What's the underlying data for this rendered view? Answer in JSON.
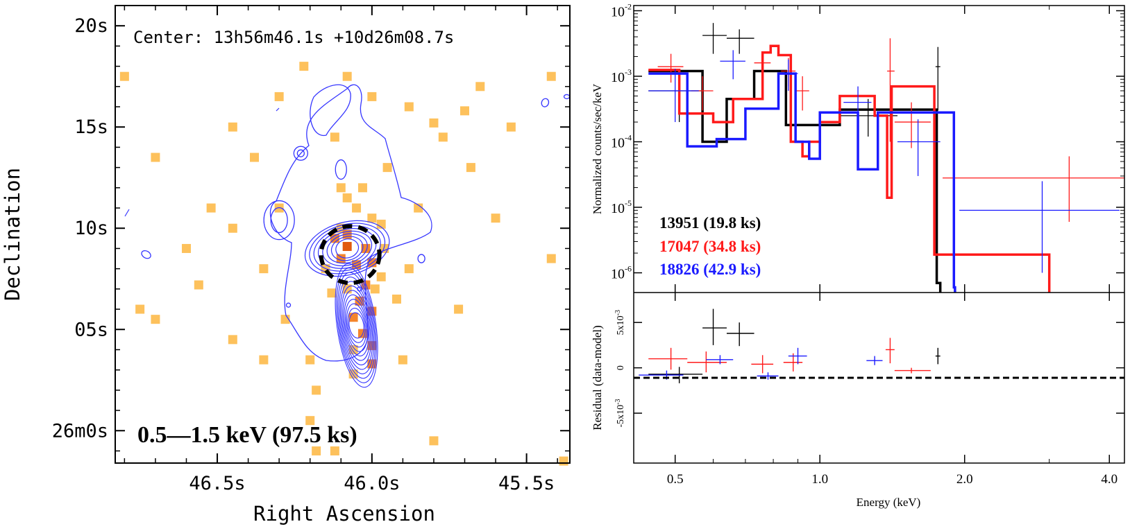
{
  "chart_data": [
    {
      "type": "heatmap",
      "title": "Center: 13h56m46.1s +10d26m08.7s",
      "band_label": "0.5—1.5 keV (97.5 ks)",
      "xlabel": "Right Ascension",
      "ylabel": "Declination",
      "xlim": [
        46.83,
        45.36
      ],
      "ylim": [
        -1.6,
        21
      ],
      "x_ticks": [
        {
          "value": 46.5,
          "label": "46.5s"
        },
        {
          "value": 46.0,
          "label": "46.0s"
        },
        {
          "value": 45.5,
          "label": "45.5s"
        }
      ],
      "y_ticks": [
        {
          "value": 20,
          "label": "20s"
        },
        {
          "value": 15,
          "label": "15s"
        },
        {
          "value": 10,
          "label": "10s"
        },
        {
          "value": 5,
          "label": "05s"
        },
        {
          "value": 0,
          "label": "26m0s"
        }
      ],
      "pixels": [
        [
          46.8,
          17.5,
          1
        ],
        [
          46.7,
          13.5,
          1
        ],
        [
          46.6,
          9,
          1
        ],
        [
          46.7,
          5.5,
          1
        ],
        [
          46.45,
          15,
          1
        ],
        [
          46.45,
          4.5,
          1
        ],
        [
          46.75,
          6,
          1
        ],
        [
          46.45,
          10,
          1
        ],
        [
          46.38,
          13.5,
          1
        ],
        [
          46.3,
          16.5,
          1
        ],
        [
          46.3,
          11,
          1
        ],
        [
          46.35,
          8,
          1
        ],
        [
          46.28,
          5.5,
          1
        ],
        [
          46.35,
          3.5,
          1
        ],
        [
          46.2,
          3.5,
          1
        ],
        [
          46.18,
          2,
          1
        ],
        [
          46.2,
          0.5,
          1
        ],
        [
          46.18,
          -1,
          1
        ],
        [
          46.12,
          -1,
          1
        ],
        [
          46.12,
          14.5,
          1
        ],
        [
          46.1,
          12,
          1
        ],
        [
          46.08,
          17.5,
          1
        ],
        [
          46.22,
          18,
          1
        ],
        [
          46.0,
          16.5,
          1
        ],
        [
          45.95,
          13,
          1
        ],
        [
          45.88,
          16,
          1
        ],
        [
          45.85,
          11,
          1
        ],
        [
          45.8,
          15.2,
          1
        ],
        [
          45.77,
          14.5,
          1
        ],
        [
          45.7,
          15.8,
          1
        ],
        [
          45.68,
          13,
          1
        ],
        [
          45.65,
          17,
          1
        ],
        [
          45.6,
          10.5,
          1
        ],
        [
          45.55,
          15,
          1
        ],
        [
          45.42,
          17.5,
          1
        ],
        [
          45.42,
          8.5,
          1
        ],
        [
          45.38,
          -1.5,
          1
        ],
        [
          45.92,
          6.5,
          1
        ],
        [
          45.88,
          8,
          1
        ],
        [
          45.9,
          3.5,
          1
        ],
        [
          45.8,
          -0.5,
          1
        ],
        [
          45.72,
          6,
          1
        ],
        [
          46.52,
          11,
          1
        ],
        [
          46.56,
          7.2,
          1
        ],
        [
          46.0,
          10.5,
          1
        ],
        [
          45.96,
          9,
          1
        ],
        [
          45.99,
          7,
          1
        ],
        [
          46.03,
          12,
          1
        ],
        [
          46.05,
          11,
          1
        ],
        [
          46.1,
          10,
          1
        ],
        [
          46.08,
          9.7,
          2
        ],
        [
          46.08,
          9.1,
          3
        ],
        [
          46.02,
          9.0,
          2
        ],
        [
          46.05,
          8.2,
          2
        ],
        [
          46.0,
          8.3,
          2
        ],
        [
          45.97,
          7.6,
          1
        ],
        [
          46.02,
          7.2,
          2
        ],
        [
          46.04,
          6.4,
          2
        ],
        [
          46.0,
          5.9,
          2
        ],
        [
          46.06,
          5.6,
          2
        ],
        [
          46.03,
          4.8,
          2
        ],
        [
          46.0,
          4.2,
          2
        ],
        [
          46.06,
          4.0,
          1
        ],
        [
          46.0,
          3.3,
          2
        ],
        [
          46.06,
          2.8,
          1
        ],
        [
          46.08,
          11.5,
          1
        ],
        [
          46.12,
          9.5,
          2
        ],
        [
          46.1,
          8.5,
          2
        ],
        [
          45.97,
          10.2,
          1
        ],
        [
          46.15,
          8.0,
          1
        ],
        [
          46.13,
          6.8,
          1
        ],
        [
          46.08,
          7.0,
          1
        ]
      ],
      "pixel_colors": [
        "#fdc15c",
        "#f4852c",
        "#e15a10"
      ],
      "source_ellipse": {
        "x": 46.07,
        "y": 8.7,
        "label": ""
      },
      "contour_color": "#3535ff"
    },
    {
      "type": "line",
      "title": "",
      "xlabel": "Energy (keV)",
      "ylabel": "Normalized counts/sec/keV",
      "residual_ylabel": "Residual (data-model)",
      "xscale": "log",
      "yscale": "log",
      "xlim": [
        0.41,
        4.3
      ],
      "ylim": [
        5e-07,
        0.012
      ],
      "residual_ylim": [
        -0.0105,
        0.0083
      ],
      "x_ticks": [
        {
          "value": 0.5,
          "label": "0.5"
        },
        {
          "value": 1.0,
          "label": "1.0"
        },
        {
          "value": 2.0,
          "label": "2.0"
        },
        {
          "value": 4.0,
          "label": "4.0"
        }
      ],
      "y_ticks": [
        {
          "value": 0.01,
          "base": "10",
          "exp": "-2"
        },
        {
          "value": 0.001,
          "base": "10",
          "exp": "-3"
        },
        {
          "value": 0.0001,
          "base": "10",
          "exp": "-4"
        },
        {
          "value": 1e-05,
          "base": "10",
          "exp": "-5"
        },
        {
          "value": 1e-06,
          "base": "10",
          "exp": "-6"
        }
      ],
      "residual_ticks": [
        {
          "value": 0.005,
          "label": "5x10",
          "exp": "-3"
        },
        {
          "value": 0,
          "label": "0",
          "exp": ""
        },
        {
          "value": -0.005,
          "label": "-5x10",
          "exp": "-3"
        }
      ],
      "series": [
        {
          "name": "13951 (19.8 ks)",
          "color": "#000000",
          "model_edges": [
            0.44,
            0.57,
            0.64,
            0.73,
            0.85,
            1.0,
            1.1,
            1.75,
            1.78
          ],
          "model_values": [
            0.0012,
            0.0001,
            0.00045,
            0.0012,
            0.00018,
            0.00018,
            0.00031,
            7e-07
          ],
          "data": [
            {
              "x": 0.6,
              "xlo": 0.57,
              "xhi": 0.64,
              "y": 0.0042,
              "ylo": 0.0022,
              "yhi": 0.0065
            },
            {
              "x": 0.68,
              "xlo": 0.64,
              "xhi": 0.73,
              "y": 0.0038,
              "ylo": 0.0022,
              "yhi": 0.0052
            },
            {
              "x": 0.51,
              "xlo": 0.44,
              "xhi": 0.57,
              "y": 0.0006,
              "ylo": 0.0002,
              "yhi": 0.0012
            },
            {
              "x": 1.26,
              "xlo": 1.1,
              "xhi": 1.45,
              "y": 0.00025,
              "ylo": 0.00012,
              "yhi": 0.00045
            },
            {
              "x": 1.76,
              "xlo": 1.74,
              "xhi": 1.78,
              "y": 0.0014,
              "ylo": 0.0003,
              "yhi": 0.0028
            }
          ],
          "residuals": [
            {
              "x": 0.6,
              "xlo": 0.57,
              "xhi": 0.64,
              "y": 0.0044,
              "ylo": 0.0025,
              "yhi": 0.0065
            },
            {
              "x": 0.68,
              "xlo": 0.64,
              "xhi": 0.73,
              "y": 0.0038,
              "ylo": 0.0024,
              "yhi": 0.005
            },
            {
              "x": 0.51,
              "xlo": 0.44,
              "xhi": 0.57,
              "y": -0.0007,
              "ylo": -0.0017,
              "yhi": 0.0001
            },
            {
              "x": 1.76,
              "xlo": 1.74,
              "xhi": 1.78,
              "y": 0.0013,
              "ylo": 0.0004,
              "yhi": 0.0022
            }
          ]
        },
        {
          "name": "17047 (34.8 ks)",
          "color": "#ff1a1a",
          "model_edges": [
            0.44,
            0.51,
            0.6,
            0.66,
            0.76,
            0.79,
            0.82,
            0.87,
            0.92,
            0.95,
            1.0,
            1.1,
            1.3,
            1.38,
            1.41,
            1.73,
            3.0
          ],
          "model_values": [
            0.00125,
            0.00027,
            0.0002,
            0.00045,
            0.0023,
            0.0029,
            0.0021,
            0.0001,
            6e-05,
            0.0001,
            0.0002,
            0.0005,
            0.00025,
            1.4e-05,
            0.0007,
            1.9e-06
          ],
          "data": [
            {
              "x": 0.49,
              "xlo": 0.46,
              "xhi": 0.52,
              "y": 0.0014,
              "ylo": 0.0008,
              "yhi": 0.0022
            },
            {
              "x": 0.57,
              "xlo": 0.54,
              "xhi": 0.6,
              "y": 0.0006,
              "ylo": 0.0003,
              "yhi": 0.001
            },
            {
              "x": 0.76,
              "xlo": 0.73,
              "xhi": 0.79,
              "y": 0.0016,
              "ylo": 0.001,
              "yhi": 0.0024
            },
            {
              "x": 0.86,
              "xlo": 0.83,
              "xhi": 0.89,
              "y": 0.0012,
              "ylo": 0.0007,
              "yhi": 0.0019
            },
            {
              "x": 0.92,
              "xlo": 0.89,
              "xhi": 0.95,
              "y": 0.0006,
              "ylo": 0.0003,
              "yhi": 0.001
            },
            {
              "x": 1.4,
              "xlo": 1.38,
              "xhi": 1.43,
              "y": 0.0012,
              "ylo": 0.0001,
              "yhi": 0.0038
            },
            {
              "x": 1.55,
              "xlo": 1.43,
              "xhi": 1.7,
              "y": 0.0002,
              "ylo": 8e-05,
              "yhi": 0.0004
            },
            {
              "x": 3.3,
              "xlo": 1.8,
              "xhi": 4.3,
              "y": 2.8e-05,
              "ylo": 6e-06,
              "yhi": 6e-05
            }
          ],
          "residuals": [
            {
              "x": 0.49,
              "xlo": 0.44,
              "xhi": 0.53,
              "y": 0.001,
              "ylo": -0.0002,
              "yhi": 0.0022
            },
            {
              "x": 0.58,
              "xlo": 0.53,
              "xhi": 0.64,
              "y": 0.0006,
              "ylo": -0.0005,
              "yhi": 0.0018
            },
            {
              "x": 0.76,
              "xlo": 0.72,
              "xhi": 0.8,
              "y": 0.0004,
              "ylo": -0.0006,
              "yhi": 0.0014
            },
            {
              "x": 0.88,
              "xlo": 0.84,
              "xhi": 0.92,
              "y": 0.0006,
              "ylo": -0.0004,
              "yhi": 0.0016
            },
            {
              "x": 1.4,
              "xlo": 1.37,
              "xhi": 1.43,
              "y": 0.002,
              "ylo": 0.0005,
              "yhi": 0.0033
            },
            {
              "x": 1.55,
              "xlo": 1.43,
              "xhi": 1.7,
              "y": -0.0003,
              "ylo": -0.0006,
              "yhi": 0
            }
          ]
        },
        {
          "name": "18826 (42.9 ks)",
          "color": "#1a1aff",
          "model_edges": [
            0.44,
            0.53,
            0.61,
            0.7,
            0.82,
            0.89,
            0.95,
            1.0,
            1.2,
            1.32,
            1.9,
            1.91
          ],
          "model_values": [
            0.0011,
            8.5e-05,
            0.00011,
            0.00032,
            0.0011,
            0.0001,
            5.5e-05,
            0.00028,
            3.8e-05,
            0.00028,
            6e-07
          ],
          "data": [
            {
              "x": 0.5,
              "xlo": 0.44,
              "xhi": 0.56,
              "y": 0.0006,
              "ylo": 0.0002,
              "yhi": 0.0013
            },
            {
              "x": 0.66,
              "xlo": 0.62,
              "xhi": 0.7,
              "y": 0.0017,
              "ylo": 0.0009,
              "yhi": 0.0025
            },
            {
              "x": 0.86,
              "xlo": 0.82,
              "xhi": 0.9,
              "y": 0.0011,
              "ylo": 0.0006,
              "yhi": 0.0018
            },
            {
              "x": 1.2,
              "xlo": 1.12,
              "xhi": 1.28,
              "y": 0.0004,
              "ylo": 0.00015,
              "yhi": 0.0007
            },
            {
              "x": 1.6,
              "xlo": 1.45,
              "xhi": 1.78,
              "y": 0.0001,
              "ylo": 3e-05,
              "yhi": 0.00022
            },
            {
              "x": 2.9,
              "xlo": 1.95,
              "xhi": 4.2,
              "y": 9e-06,
              "ylo": 1e-06,
              "yhi": 2.5e-05
            }
          ],
          "residuals": [
            {
              "x": 0.48,
              "xlo": 0.42,
              "xhi": 0.52,
              "y": -0.0008,
              "ylo": -0.0013,
              "yhi": -0.0003
            },
            {
              "x": 0.62,
              "xlo": 0.58,
              "xhi": 0.66,
              "y": 0.0009,
              "ylo": 0.0004,
              "yhi": 0.0014
            },
            {
              "x": 0.78,
              "xlo": 0.74,
              "xhi": 0.82,
              "y": -0.0009,
              "ylo": -0.0013,
              "yhi": -0.0005
            },
            {
              "x": 0.9,
              "xlo": 0.86,
              "xhi": 0.94,
              "y": 0.0013,
              "ylo": 0.0004,
              "yhi": 0.0022
            },
            {
              "x": 1.3,
              "xlo": 1.25,
              "xhi": 1.35,
              "y": 0.0008,
              "ylo": 0.0003,
              "yhi": 0.0013
            }
          ]
        }
      ]
    }
  ]
}
